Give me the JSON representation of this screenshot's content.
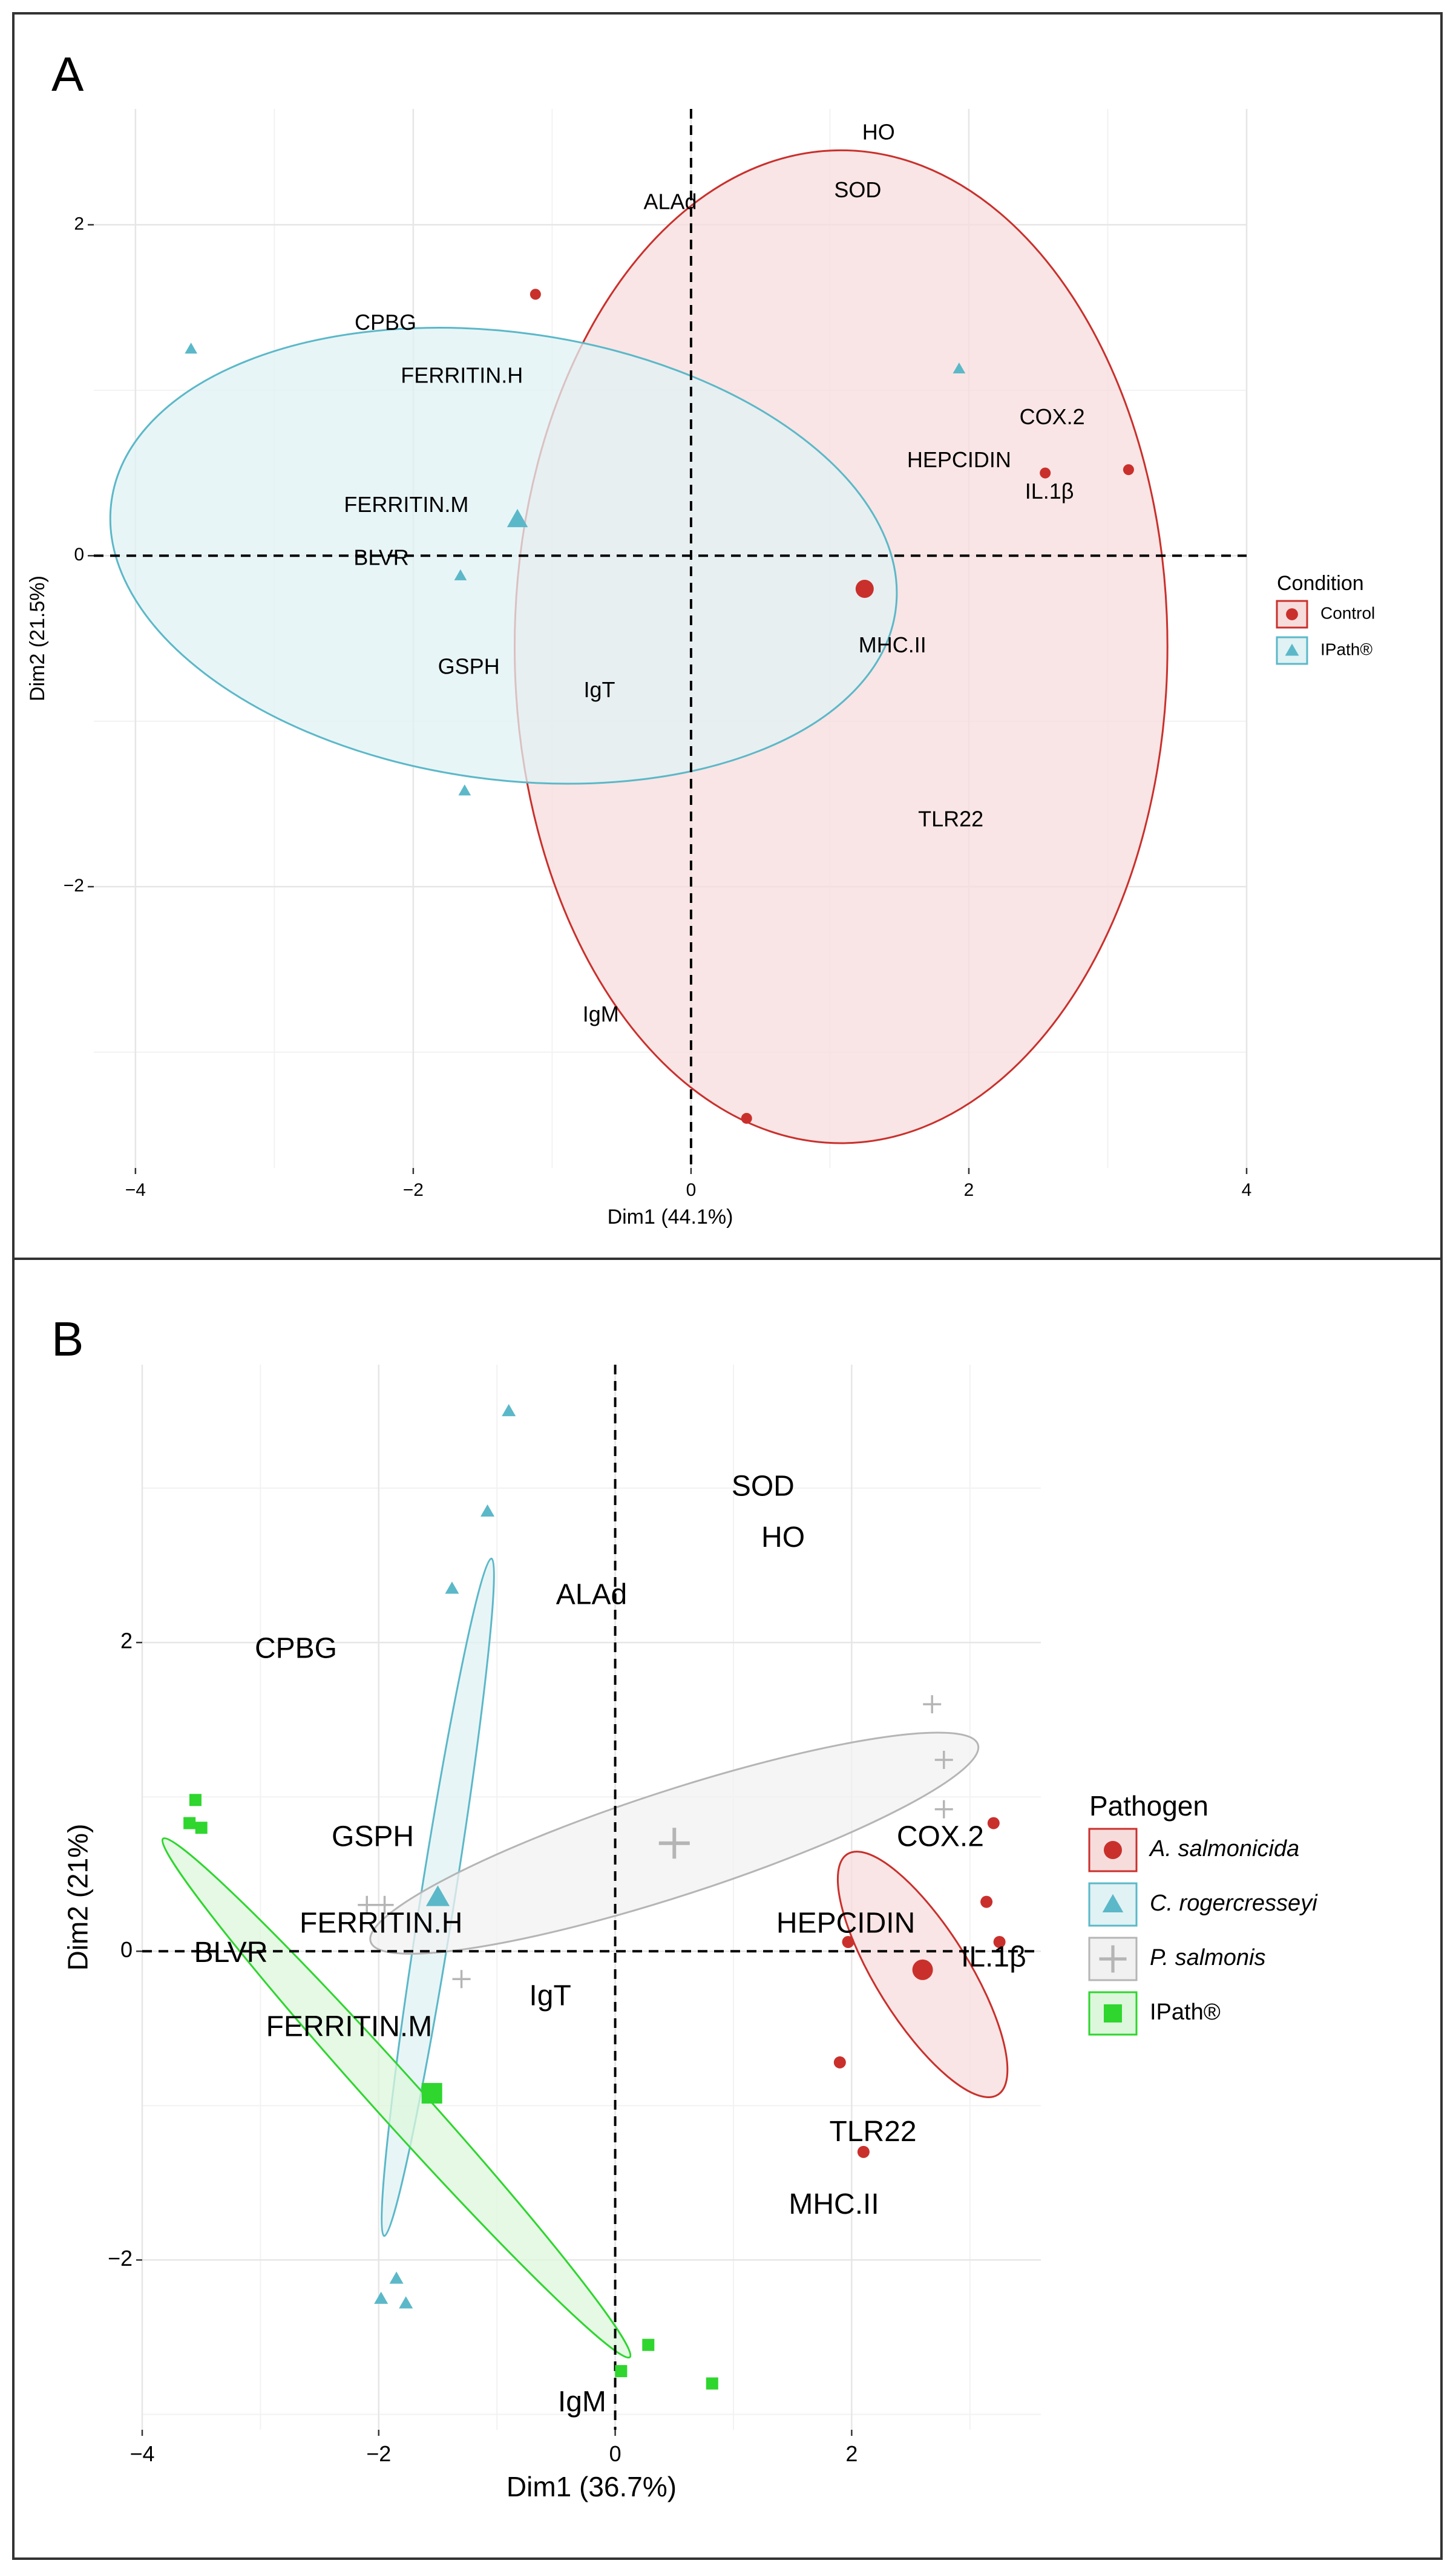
{
  "chart_data": [
    {
      "panel_label": "A",
      "type": "scatter",
      "title": "",
      "xlabel": "Dim1 (44.1%)",
      "ylabel": "Dim2 (21.5%)",
      "xlim": [
        -4.3,
        4.0
      ],
      "ylim": [
        -3.7,
        2.7
      ],
      "grid": true,
      "x_ticks": [
        {
          "value": -4,
          "label": "−4"
        },
        {
          "value": -2,
          "label": "−2"
        },
        {
          "value": 0,
          "label": "0"
        },
        {
          "value": 2,
          "label": "2"
        },
        {
          "value": 4,
          "label": "4"
        }
      ],
      "y_ticks": [
        {
          "value": -2,
          "label": "−2"
        },
        {
          "value": 0,
          "label": "0"
        },
        {
          "value": 2,
          "label": "2"
        }
      ],
      "legend": {
        "title": "Condition",
        "position": "right"
      },
      "series": [
        {
          "name": "Control",
          "color": "#c9302c",
          "fill": "#f7dcdc",
          "shape": "circle",
          "points": [
            [
              -1.12,
              1.58
            ],
            [
              2.55,
              0.5
            ],
            [
              3.15,
              0.52
            ],
            [
              0.4,
              -3.4
            ]
          ],
          "centroid": [
            1.25,
            -0.2
          ],
          "ellipse": {
            "cx": 1.08,
            "cy": -0.55,
            "rx": 2.35,
            "ry": 3.0,
            "angle_deg": 0
          }
        },
        {
          "name": "IPath®",
          "color": "#5bb8c8",
          "fill": "#e0f2f4",
          "shape": "triangle",
          "points": [
            [
              -3.6,
              1.25
            ],
            [
              1.93,
              1.13
            ],
            [
              -1.66,
              -0.12
            ],
            [
              -1.63,
              -1.42
            ]
          ],
          "centroid": [
            -1.25,
            0.22
          ],
          "ellipse": {
            "cx": -1.35,
            "cy": 0.0,
            "rx": 2.85,
            "ry": 1.35,
            "angle_deg": -8
          }
        }
      ],
      "variable_labels": [
        {
          "label": "HO",
          "x": 1.35,
          "y": 2.55
        },
        {
          "label": "SOD",
          "x": 1.2,
          "y": 2.2
        },
        {
          "label": "ALAd",
          "x": -0.15,
          "y": 2.13
        },
        {
          "label": "CPBG",
          "x": -2.2,
          "y": 1.4
        },
        {
          "label": "FERRITIN.H",
          "x": -1.65,
          "y": 1.08
        },
        {
          "label": "COX.2",
          "x": 2.6,
          "y": 0.83
        },
        {
          "label": "HEPCIDIN",
          "x": 1.93,
          "y": 0.57
        },
        {
          "label": "IL.1β",
          "x": 2.58,
          "y": 0.38
        },
        {
          "label": "FERRITIN.M",
          "x": -2.05,
          "y": 0.3
        },
        {
          "label": "BLVR",
          "x": -2.23,
          "y": -0.02
        },
        {
          "label": "MHC.II",
          "x": 1.45,
          "y": -0.55
        },
        {
          "label": "GSPH",
          "x": -1.6,
          "y": -0.68
        },
        {
          "label": "IgT",
          "x": -0.66,
          "y": -0.82
        },
        {
          "label": "TLR22",
          "x": 1.87,
          "y": -1.6
        },
        {
          "label": "IgM",
          "x": -0.65,
          "y": -2.78
        }
      ]
    },
    {
      "panel_label": "B",
      "type": "scatter",
      "title": "",
      "xlabel": "Dim1 (36.7%)",
      "ylabel": "Dim2 (21%)",
      "xlim": [
        -4.0,
        3.6
      ],
      "ylim": [
        -3.1,
        3.8
      ],
      "grid": true,
      "x_ticks": [
        {
          "value": -4,
          "label": "−4"
        },
        {
          "value": -2,
          "label": "−2"
        },
        {
          "value": 0,
          "label": "0"
        },
        {
          "value": 2,
          "label": "2"
        }
      ],
      "y_ticks": [
        {
          "value": -2,
          "label": "−2"
        },
        {
          "value": 0,
          "label": "0"
        },
        {
          "value": 2,
          "label": "2"
        }
      ],
      "legend": {
        "title": "Pathogen",
        "position": "right"
      },
      "series": [
        {
          "name": "A. salmonicida",
          "italic": true,
          "color": "#c9302c",
          "fill": "#f7dcdc",
          "shape": "circle",
          "points": [
            [
              3.2,
              0.83
            ],
            [
              3.14,
              0.32
            ],
            [
              3.25,
              0.06
            ],
            [
              1.97,
              0.06
            ],
            [
              1.9,
              -0.72
            ],
            [
              2.1,
              -1.3
            ]
          ],
          "centroid": [
            2.6,
            -0.12
          ],
          "ellipse": {
            "cx": 2.6,
            "cy": -0.15,
            "rx": 1.2,
            "ry": 0.3,
            "angle_deg": -58
          }
        },
        {
          "name": "C. rogercresseyi",
          "italic": true,
          "color": "#5bb8c8",
          "fill": "#e0f2f4",
          "shape": "triangle",
          "points": [
            [
              -0.9,
              3.5
            ],
            [
              -1.08,
              2.85
            ],
            [
              -1.38,
              2.35
            ],
            [
              -1.85,
              -2.12
            ],
            [
              -1.77,
              -2.28
            ],
            [
              -1.98,
              -2.25
            ]
          ],
          "centroid": [
            -1.5,
            0.35
          ],
          "ellipse": {
            "cx": -1.5,
            "cy": 0.35,
            "rx": 2.9,
            "ry": 0.11,
            "angle_deg": 81
          }
        },
        {
          "name": "P. salmonis",
          "italic": true,
          "color": "#b5b5b5",
          "fill": "#f1f1f1",
          "shape": "plus",
          "points": [
            [
              2.68,
              1.6
            ],
            [
              2.78,
              1.24
            ],
            [
              2.78,
              0.92
            ],
            [
              -2.1,
              0.3
            ],
            [
              -1.95,
              0.3
            ],
            [
              -1.3,
              -0.18
            ]
          ],
          "centroid": [
            0.5,
            0.7
          ],
          "ellipse": {
            "cx": 0.5,
            "cy": 0.7,
            "rx": 2.7,
            "ry": 0.34,
            "angle_deg": 18
          }
        },
        {
          "name": "IPath®",
          "italic": false,
          "color": "#2ed62e",
          "fill": "#dcf7dc",
          "shape": "square",
          "points": [
            [
              -3.55,
              0.98
            ],
            [
              -3.6,
              0.83
            ],
            [
              -3.5,
              0.8
            ],
            [
              0.28,
              -2.55
            ],
            [
              0.05,
              -2.72
            ],
            [
              0.82,
              -2.8
            ]
          ],
          "centroid": [
            -1.55,
            -0.92
          ],
          "ellipse": {
            "cx": -1.85,
            "cy": -0.95,
            "rx": 2.95,
            "ry": 0.15,
            "angle_deg": -48
          }
        }
      ],
      "variable_labels": [
        {
          "label": "SOD",
          "x": 1.25,
          "y": 3.0
        },
        {
          "label": "HO",
          "x": 1.42,
          "y": 2.67
        },
        {
          "label": "ALAd",
          "x": -0.2,
          "y": 2.3
        },
        {
          "label": "CPBG",
          "x": -2.7,
          "y": 1.95
        },
        {
          "label": "GSPH",
          "x": -2.05,
          "y": 0.73
        },
        {
          "label": "COX.2",
          "x": 2.75,
          "y": 0.73
        },
        {
          "label": "FERRITIN.H",
          "x": -1.98,
          "y": 0.17
        },
        {
          "label": "HEPCIDIN",
          "x": 1.95,
          "y": 0.17
        },
        {
          "label": "IL.1β",
          "x": 3.2,
          "y": -0.05
        },
        {
          "label": "BLVR",
          "x": -3.25,
          "y": -0.02
        },
        {
          "label": "IgT",
          "x": -0.55,
          "y": -0.3
        },
        {
          "label": "FERRITIN.M",
          "x": -2.25,
          "y": -0.5
        },
        {
          "label": "TLR22",
          "x": 2.18,
          "y": -1.18
        },
        {
          "label": "MHC.II",
          "x": 1.85,
          "y": -1.65
        },
        {
          "label": "IgM",
          "x": -0.28,
          "y": -2.93
        }
      ]
    }
  ]
}
